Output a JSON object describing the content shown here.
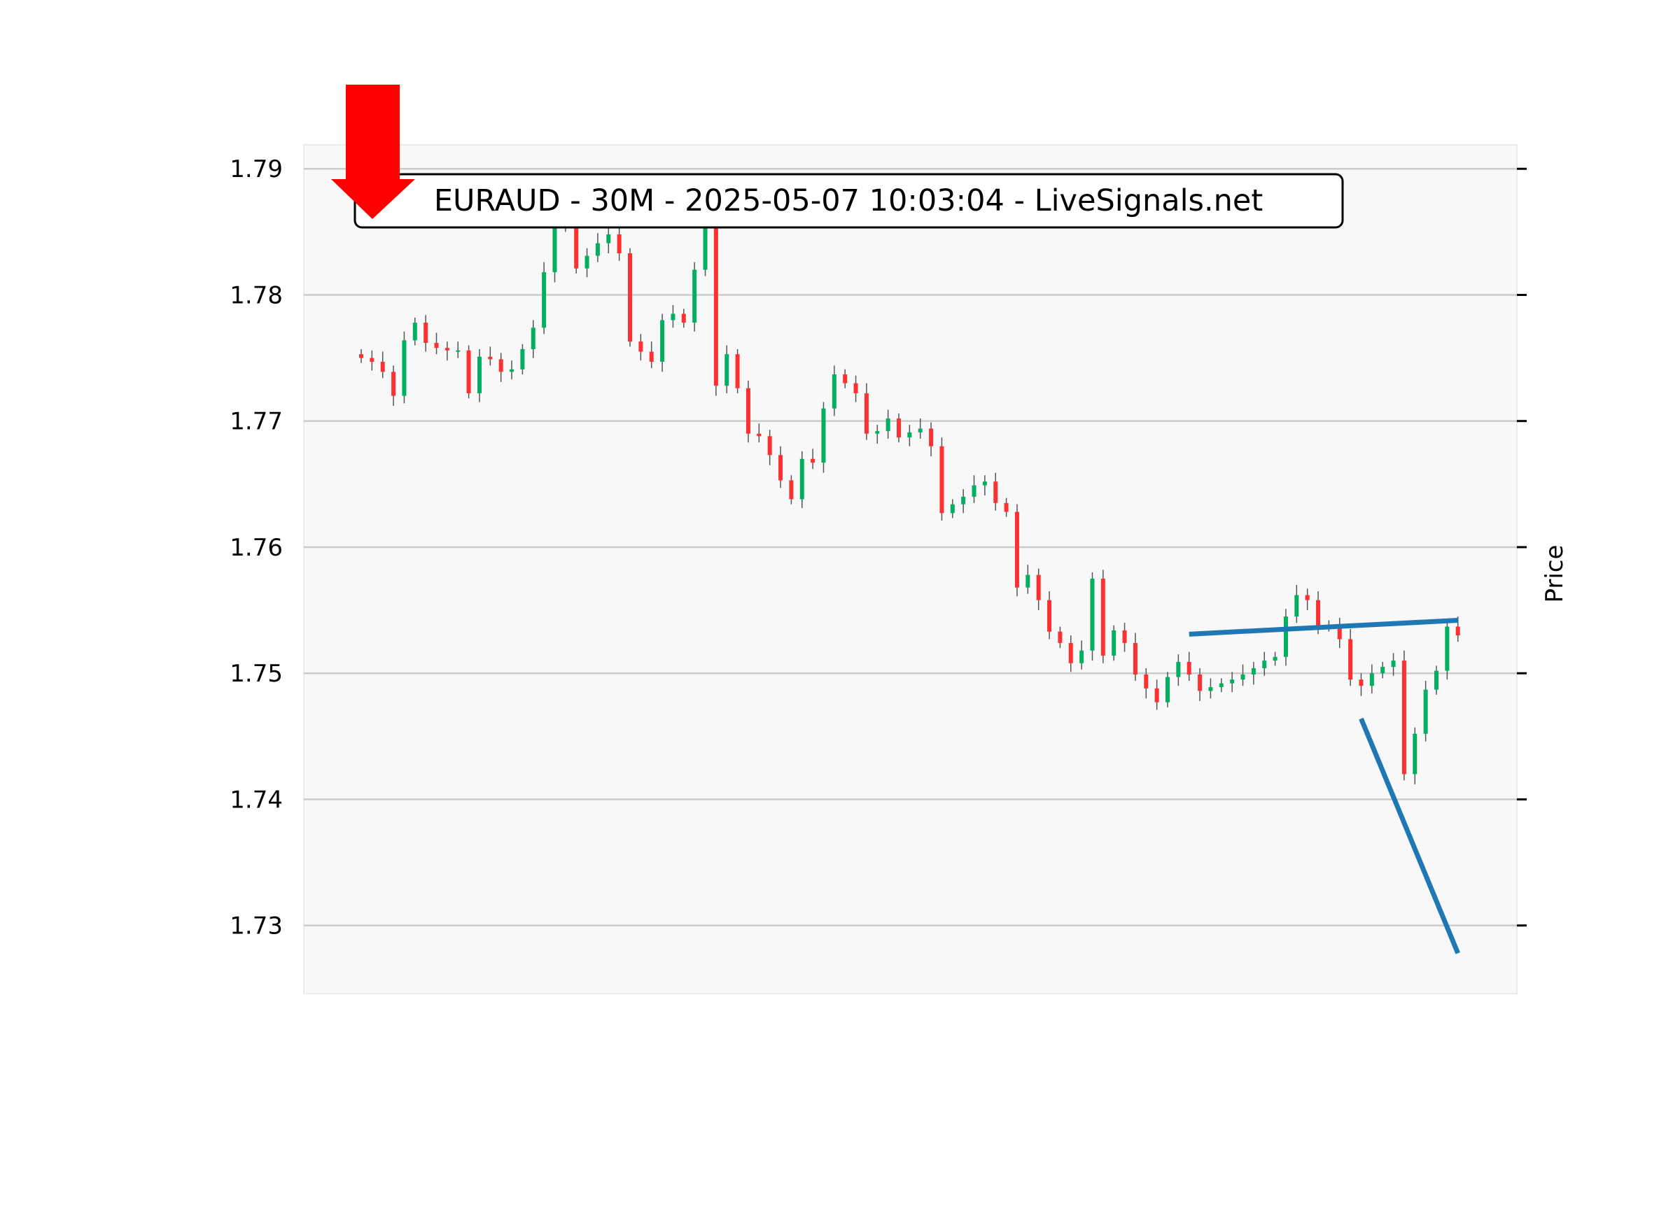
{
  "chart_data": {
    "type": "candlestick",
    "title": "EURAUD - 30M - 2025-05-07 10:03:04 - LiveSignals.net",
    "xlabel": "",
    "ylabel": "Price",
    "ylim": [
      1.7246,
      1.7919
    ],
    "yticks": [
      "1.73",
      "1.74",
      "1.75",
      "1.76",
      "1.77",
      "1.78",
      "1.79"
    ],
    "ytick_values": [
      1.73,
      1.74,
      1.75,
      1.76,
      1.77,
      1.78,
      1.79
    ],
    "grid": true,
    "up_color": "#00b060",
    "down_color": "#ff3030",
    "closes": [
      1.775,
      1.7747,
      1.7739,
      1.772,
      1.7764,
      1.7778,
      1.7762,
      1.7758,
      1.7756,
      1.7756,
      1.7722,
      1.7751,
      1.7749,
      1.7739,
      1.7741,
      1.7757,
      1.7774,
      1.7818,
      1.7869,
      1.7856,
      1.7821,
      1.7831,
      1.7841,
      1.7848,
      1.7833,
      1.7763,
      1.7755,
      1.7747,
      1.778,
      1.7785,
      1.7778,
      1.782,
      1.788,
      1.7728,
      1.7753,
      1.7726,
      1.769,
      1.7688,
      1.7673,
      1.7653,
      1.7638,
      1.767,
      1.7667,
      1.771,
      1.7737,
      1.773,
      1.7722,
      1.769,
      1.7692,
      1.7702,
      1.7687,
      1.7691,
      1.7694,
      1.768,
      1.7627,
      1.7634,
      1.764,
      1.7649,
      1.7652,
      1.7635,
      1.7628,
      1.7568,
      1.7578,
      1.7558,
      1.7533,
      1.7524,
      1.7508,
      1.7518,
      1.7575,
      1.7514,
      1.7534,
      1.7524,
      1.7499,
      1.7488,
      1.7477,
      1.7497,
      1.7509,
      1.7499,
      1.7486,
      1.7489,
      1.7492,
      1.7495,
      1.7499,
      1.7504,
      1.751,
      1.7513,
      1.7545,
      1.7562,
      1.7558,
      1.7537,
      1.7538,
      1.7527,
      1.7495,
      1.749,
      1.75,
      1.7505,
      1.751,
      1.742,
      1.7452,
      1.7487,
      1.7502,
      1.7537,
      1.753
    ],
    "trendlines": [
      {
        "from_index": 77,
        "from_price": 1.7531,
        "to_index": 102,
        "to_price": 1.7542,
        "color": "#1f77b4"
      },
      {
        "from_index": 93,
        "from_price": 1.7464,
        "to_index": 102,
        "to_price": 1.7278,
        "color": "#1f77b4"
      }
    ],
    "signal": {
      "direction": "down",
      "icon": "red-down-arrow-icon",
      "color": "#ff0000"
    }
  }
}
